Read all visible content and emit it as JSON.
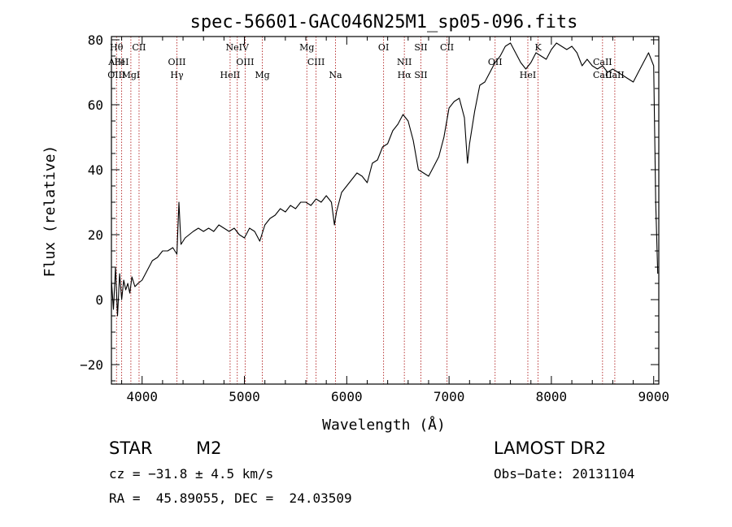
{
  "chart_data": {
    "type": "line",
    "title": "spec-56601-GAC046N25M1_sp05-096.fits",
    "xlabel": "Wavelength (Å)",
    "ylabel": "Flux (relative)",
    "xlim": [
      3700,
      9050
    ],
    "ylim": [
      -26,
      81
    ],
    "x_ticks": [
      4000,
      5000,
      6000,
      7000,
      8000,
      9000
    ],
    "x_tick_labels": [
      "4000",
      "5000",
      "6000",
      "7000",
      "8000",
      "9000"
    ],
    "y_ticks": [
      -20,
      0,
      20,
      40,
      60,
      80
    ],
    "y_tick_labels": [
      "−20",
      "0",
      "20",
      "40",
      "60",
      "80"
    ],
    "grid": false,
    "series": [
      {
        "x": [
          3700,
          3720,
          3740,
          3760,
          3780,
          3800,
          3820,
          3840,
          3860,
          3880,
          3900,
          3930,
          3960,
          4000,
          4050,
          4100,
          4150,
          4200,
          4250,
          4300,
          4340,
          4360,
          4380,
          4420,
          4460,
          4500,
          4550,
          4600,
          4650,
          4700,
          4750,
          4800,
          4850,
          4900,
          4950,
          5000,
          5050,
          5100,
          5150,
          5200,
          5250,
          5300,
          5350,
          5400,
          5450,
          5500,
          5550,
          5600,
          5650,
          5700,
          5750,
          5800,
          5850,
          5880,
          5900,
          5950,
          6000,
          6050,
          6100,
          6150,
          6200,
          6250,
          6300,
          6350,
          6400,
          6450,
          6500,
          6550,
          6600,
          6650,
          6700,
          6750,
          6800,
          6850,
          6900,
          6950,
          7000,
          7050,
          7100,
          7150,
          7180,
          7200,
          7250,
          7300,
          7350,
          7400,
          7450,
          7500,
          7550,
          7600,
          7650,
          7700,
          7750,
          7800,
          7850,
          7900,
          7950,
          8000,
          8050,
          8100,
          8150,
          8200,
          8250,
          8300,
          8350,
          8400,
          8450,
          8500,
          8550,
          8600,
          8650,
          8700,
          8750,
          8800,
          8850,
          8900,
          8950,
          9000,
          9020,
          9040
        ],
        "y": [
          6,
          -3,
          10,
          -5,
          8,
          0,
          6,
          3,
          5,
          2,
          7,
          4,
          5,
          6,
          9,
          12,
          13,
          15,
          15,
          16,
          14,
          30,
          17,
          19,
          20,
          21,
          22,
          21,
          22,
          21,
          23,
          22,
          21,
          22,
          20,
          19,
          22,
          21,
          18,
          23,
          25,
          26,
          28,
          27,
          29,
          28,
          30,
          30,
          29,
          31,
          30,
          32,
          30,
          23,
          27,
          33,
          35,
          37,
          39,
          38,
          36,
          42,
          43,
          47,
          48,
          52,
          54,
          57,
          55,
          49,
          40,
          39,
          38,
          41,
          44,
          50,
          59,
          61,
          62,
          56,
          42,
          48,
          58,
          66,
          67,
          70,
          73,
          75,
          78,
          79,
          76,
          73,
          71,
          73,
          76,
          75,
          74,
          77,
          79,
          78,
          77,
          78,
          76,
          72,
          74,
          72,
          71,
          72,
          70,
          71,
          70,
          69,
          68,
          67,
          70,
          73,
          76,
          72,
          30,
          8
        ]
      }
    ],
    "line_markers": [
      {
        "x": 3750,
        "labels": [
          "Hθ",
          "AlII",
          "OIII"
        ]
      },
      {
        "x": 3800,
        "labels": [
          "FeI"
        ]
      },
      {
        "x": 3890,
        "labels": [
          "MgI"
        ]
      },
      {
        "x": 3970,
        "labels": [
          "CII"
        ]
      },
      {
        "x": 4340,
        "labels": [
          "OIII",
          "Hγ"
        ]
      },
      {
        "x": 4860,
        "labels": [
          "HeII"
        ]
      },
      {
        "x": 4930,
        "labels": [
          "NeIV"
        ]
      },
      {
        "x": 5007,
        "labels": [
          "OIII"
        ]
      },
      {
        "x": 5175,
        "labels": [
          "Mg"
        ]
      },
      {
        "x": 5610,
        "labels": [
          "Mg"
        ]
      },
      {
        "x": 5700,
        "labels": [
          "CIII"
        ]
      },
      {
        "x": 5890,
        "labels": [
          "Na"
        ]
      },
      {
        "x": 6360,
        "labels": [
          "OI"
        ]
      },
      {
        "x": 6563,
        "labels": [
          "NII",
          "Hα"
        ]
      },
      {
        "x": 6725,
        "labels": [
          "SII",
          "SII"
        ]
      },
      {
        "x": 6980,
        "labels": [
          "CII"
        ]
      },
      {
        "x": 7450,
        "labels": [
          "OII"
        ]
      },
      {
        "x": 7770,
        "labels": [
          "HeI"
        ]
      },
      {
        "x": 7870,
        "labels": [
          "K"
        ]
      },
      {
        "x": 8500,
        "labels": [
          "CaII",
          "CaII"
        ]
      },
      {
        "x": 8620,
        "labels": [
          "CaII"
        ]
      }
    ]
  },
  "info": {
    "object_class": "STAR",
    "subclass": "M2",
    "survey": "LAMOST DR2",
    "cz": "cz = −31.8 ± 4.5 km/s",
    "obs_date": "Obs−Date: 20131104",
    "coords": "RA =  45.89055, DEC =  24.03509"
  }
}
